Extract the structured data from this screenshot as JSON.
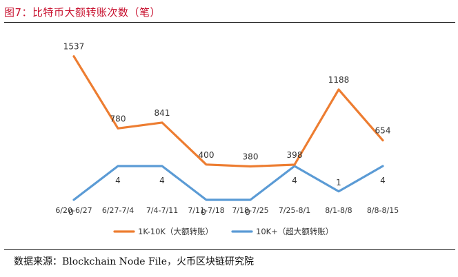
{
  "title": "图7：比特币大额转账次数（笔）",
  "source": "数据来源：Blockchain Node File，火币区块链研究院",
  "colors": {
    "series1": "#ed7d31",
    "series2": "#5b9bd5",
    "title": "#c8102e"
  },
  "chart_data": {
    "type": "line",
    "title": "图7：比特币大额转账次数（笔）",
    "categories": [
      "6/20-6/27",
      "6/27-7/4",
      "7/4-7/11",
      "7/11-7/18",
      "7/18-7/25",
      "7/25-8/1",
      "8/1-8/8",
      "8/8-8/15"
    ],
    "ylim": [
      0,
      1600
    ],
    "grid": false,
    "legend_position": "bottom",
    "series": [
      {
        "name": "1K-10K（大额转账）",
        "values": [
          1537,
          780,
          841,
          400,
          380,
          398,
          1188,
          654
        ],
        "color": "#ed7d31"
      },
      {
        "name": "10K+（超大额转账）",
        "values": [
          0,
          4,
          4,
          0,
          0,
          4,
          1,
          4
        ],
        "color": "#5b9bd5"
      }
    ]
  }
}
